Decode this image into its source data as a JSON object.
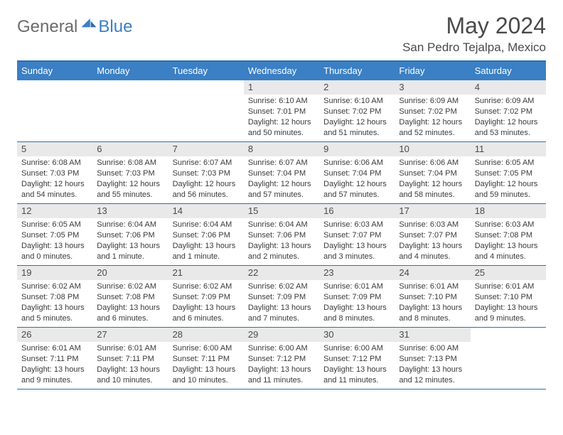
{
  "brand": {
    "part1": "General",
    "part2": "Blue"
  },
  "title": "May 2024",
  "location": "San Pedro Tejalpa, Mexico",
  "colors": {
    "header_bg": "#3b7fc4",
    "header_border": "#2b6fb0",
    "daynum_bg": "#e9e9e9",
    "text": "#4a4a4a",
    "logo_gray": "#6b6b6b",
    "logo_blue": "#3b7fc4"
  },
  "day_names": [
    "Sunday",
    "Monday",
    "Tuesday",
    "Wednesday",
    "Thursday",
    "Friday",
    "Saturday"
  ],
  "weeks": [
    [
      {
        "empty": true
      },
      {
        "empty": true
      },
      {
        "empty": true
      },
      {
        "day": "1",
        "sunrise": "Sunrise: 6:10 AM",
        "sunset": "Sunset: 7:01 PM",
        "daylight": "Daylight: 12 hours and 50 minutes."
      },
      {
        "day": "2",
        "sunrise": "Sunrise: 6:10 AM",
        "sunset": "Sunset: 7:02 PM",
        "daylight": "Daylight: 12 hours and 51 minutes."
      },
      {
        "day": "3",
        "sunrise": "Sunrise: 6:09 AM",
        "sunset": "Sunset: 7:02 PM",
        "daylight": "Daylight: 12 hours and 52 minutes."
      },
      {
        "day": "4",
        "sunrise": "Sunrise: 6:09 AM",
        "sunset": "Sunset: 7:02 PM",
        "daylight": "Daylight: 12 hours and 53 minutes."
      }
    ],
    [
      {
        "day": "5",
        "sunrise": "Sunrise: 6:08 AM",
        "sunset": "Sunset: 7:03 PM",
        "daylight": "Daylight: 12 hours and 54 minutes."
      },
      {
        "day": "6",
        "sunrise": "Sunrise: 6:08 AM",
        "sunset": "Sunset: 7:03 PM",
        "daylight": "Daylight: 12 hours and 55 minutes."
      },
      {
        "day": "7",
        "sunrise": "Sunrise: 6:07 AM",
        "sunset": "Sunset: 7:03 PM",
        "daylight": "Daylight: 12 hours and 56 minutes."
      },
      {
        "day": "8",
        "sunrise": "Sunrise: 6:07 AM",
        "sunset": "Sunset: 7:04 PM",
        "daylight": "Daylight: 12 hours and 57 minutes."
      },
      {
        "day": "9",
        "sunrise": "Sunrise: 6:06 AM",
        "sunset": "Sunset: 7:04 PM",
        "daylight": "Daylight: 12 hours and 57 minutes."
      },
      {
        "day": "10",
        "sunrise": "Sunrise: 6:06 AM",
        "sunset": "Sunset: 7:04 PM",
        "daylight": "Daylight: 12 hours and 58 minutes."
      },
      {
        "day": "11",
        "sunrise": "Sunrise: 6:05 AM",
        "sunset": "Sunset: 7:05 PM",
        "daylight": "Daylight: 12 hours and 59 minutes."
      }
    ],
    [
      {
        "day": "12",
        "sunrise": "Sunrise: 6:05 AM",
        "sunset": "Sunset: 7:05 PM",
        "daylight": "Daylight: 13 hours and 0 minutes."
      },
      {
        "day": "13",
        "sunrise": "Sunrise: 6:04 AM",
        "sunset": "Sunset: 7:06 PM",
        "daylight": "Daylight: 13 hours and 1 minute."
      },
      {
        "day": "14",
        "sunrise": "Sunrise: 6:04 AM",
        "sunset": "Sunset: 7:06 PM",
        "daylight": "Daylight: 13 hours and 1 minute."
      },
      {
        "day": "15",
        "sunrise": "Sunrise: 6:04 AM",
        "sunset": "Sunset: 7:06 PM",
        "daylight": "Daylight: 13 hours and 2 minutes."
      },
      {
        "day": "16",
        "sunrise": "Sunrise: 6:03 AM",
        "sunset": "Sunset: 7:07 PM",
        "daylight": "Daylight: 13 hours and 3 minutes."
      },
      {
        "day": "17",
        "sunrise": "Sunrise: 6:03 AM",
        "sunset": "Sunset: 7:07 PM",
        "daylight": "Daylight: 13 hours and 4 minutes."
      },
      {
        "day": "18",
        "sunrise": "Sunrise: 6:03 AM",
        "sunset": "Sunset: 7:08 PM",
        "daylight": "Daylight: 13 hours and 4 minutes."
      }
    ],
    [
      {
        "day": "19",
        "sunrise": "Sunrise: 6:02 AM",
        "sunset": "Sunset: 7:08 PM",
        "daylight": "Daylight: 13 hours and 5 minutes."
      },
      {
        "day": "20",
        "sunrise": "Sunrise: 6:02 AM",
        "sunset": "Sunset: 7:08 PM",
        "daylight": "Daylight: 13 hours and 6 minutes."
      },
      {
        "day": "21",
        "sunrise": "Sunrise: 6:02 AM",
        "sunset": "Sunset: 7:09 PM",
        "daylight": "Daylight: 13 hours and 6 minutes."
      },
      {
        "day": "22",
        "sunrise": "Sunrise: 6:02 AM",
        "sunset": "Sunset: 7:09 PM",
        "daylight": "Daylight: 13 hours and 7 minutes."
      },
      {
        "day": "23",
        "sunrise": "Sunrise: 6:01 AM",
        "sunset": "Sunset: 7:09 PM",
        "daylight": "Daylight: 13 hours and 8 minutes."
      },
      {
        "day": "24",
        "sunrise": "Sunrise: 6:01 AM",
        "sunset": "Sunset: 7:10 PM",
        "daylight": "Daylight: 13 hours and 8 minutes."
      },
      {
        "day": "25",
        "sunrise": "Sunrise: 6:01 AM",
        "sunset": "Sunset: 7:10 PM",
        "daylight": "Daylight: 13 hours and 9 minutes."
      }
    ],
    [
      {
        "day": "26",
        "sunrise": "Sunrise: 6:01 AM",
        "sunset": "Sunset: 7:11 PM",
        "daylight": "Daylight: 13 hours and 9 minutes."
      },
      {
        "day": "27",
        "sunrise": "Sunrise: 6:01 AM",
        "sunset": "Sunset: 7:11 PM",
        "daylight": "Daylight: 13 hours and 10 minutes."
      },
      {
        "day": "28",
        "sunrise": "Sunrise: 6:00 AM",
        "sunset": "Sunset: 7:11 PM",
        "daylight": "Daylight: 13 hours and 10 minutes."
      },
      {
        "day": "29",
        "sunrise": "Sunrise: 6:00 AM",
        "sunset": "Sunset: 7:12 PM",
        "daylight": "Daylight: 13 hours and 11 minutes."
      },
      {
        "day": "30",
        "sunrise": "Sunrise: 6:00 AM",
        "sunset": "Sunset: 7:12 PM",
        "daylight": "Daylight: 13 hours and 11 minutes."
      },
      {
        "day": "31",
        "sunrise": "Sunrise: 6:00 AM",
        "sunset": "Sunset: 7:13 PM",
        "daylight": "Daylight: 13 hours and 12 minutes."
      },
      {
        "empty": true
      }
    ]
  ]
}
